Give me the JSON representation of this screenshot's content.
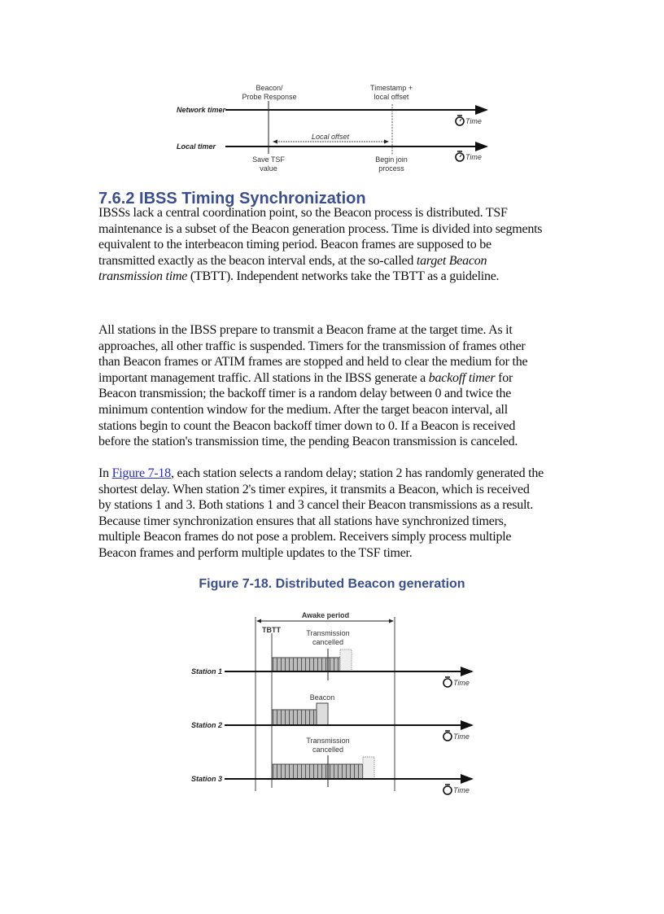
{
  "figure_top": {
    "network_timer": "Network timer",
    "local_timer": "Local timer",
    "beacon_label": [
      "Beacon/",
      "Probe Response"
    ],
    "timestamp_label": [
      "Timestamp +",
      "local offset"
    ],
    "local_offset": "Local offset",
    "save_tsf": [
      "Save TSF",
      "value"
    ],
    "begin_join": [
      "Begin join",
      "process"
    ],
    "time": "Time"
  },
  "section": {
    "heading": "7.6.2 IBSS Timing Synchronization",
    "p1": {
      "a": "IBSSs lack a central coordination point, so the Beacon process is distributed. TSF maintenance is a subset of the Beacon generation process. Time is divided into segments equivalent to the interbeacon timing period. Beacon frames are supposed to be transmitted exactly as the beacon interval ends, at the so-called ",
      "em": "target Beacon transmission time",
      "b": " (TBTT). Independent networks take the TBTT as a guideline."
    },
    "p2": {
      "a": "All stations in the IBSS prepare to transmit a Beacon frame at the target time. As it approaches, all other traffic is suspended. Timers for the transmission of frames other than Beacon frames or ATIM frames are stopped and held to clear the medium for the important management traffic. All stations in the IBSS generate a ",
      "em": "backoff timer",
      "b": " for Beacon transmission; the backoff timer is a random delay between 0 and twice the minimum contention window for the medium. After the target beacon interval, all stations begin to count the Beacon backoff timer down to 0. If a Beacon is received before the station's transmission time, the pending Beacon transmission is canceled."
    },
    "p3": {
      "a": "In ",
      "link": "Figure 7-18",
      "b": ", each station selects a random delay; station 2 has randomly generated the shortest delay. When station 2's timer expires, it transmits a Beacon, which is received by stations 1 and 3. Both stations 1 and 3 cancel their Beacon transmissions as a result. Because timer synchronization ensures that all stations have synchronized timers, multiple Beacon frames do not pose a problem. Receivers simply process multiple Beacon frames and perform multiple updates to the TSF timer."
    }
  },
  "figure_caption": "Figure 7-18. Distributed Beacon generation",
  "figure_bottom": {
    "awake_period": "Awake period",
    "tbtt": "TBTT",
    "transmission_cancelled": [
      "Transmission",
      "cancelled"
    ],
    "beacon": "Beacon",
    "stations": [
      "Station 1",
      "Station 2",
      "Station 3"
    ],
    "time": "Time"
  }
}
